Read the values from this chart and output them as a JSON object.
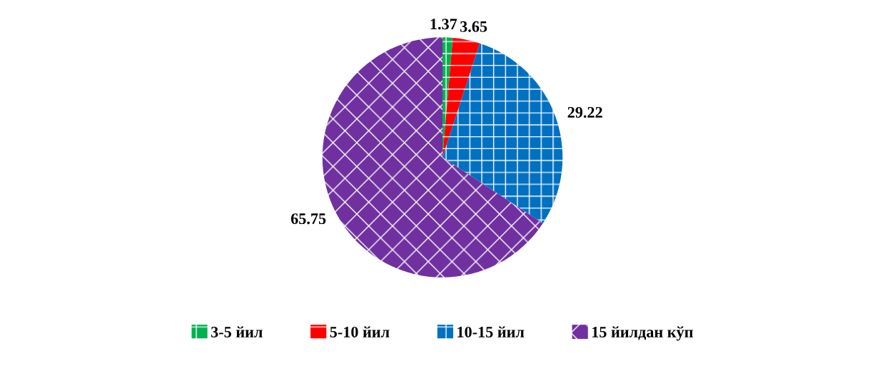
{
  "chart_data": {
    "type": "pie",
    "categories": [
      "3-5 йил",
      "5-10 йил",
      "10-15 йил",
      "15 йилдан кўп"
    ],
    "values": [
      1.37,
      3.65,
      29.22,
      65.75
    ],
    "colors": [
      "#00b050",
      "#ff0000",
      "#0070c0",
      "#7030a0"
    ],
    "data_labels": true,
    "legend": "bottom"
  }
}
